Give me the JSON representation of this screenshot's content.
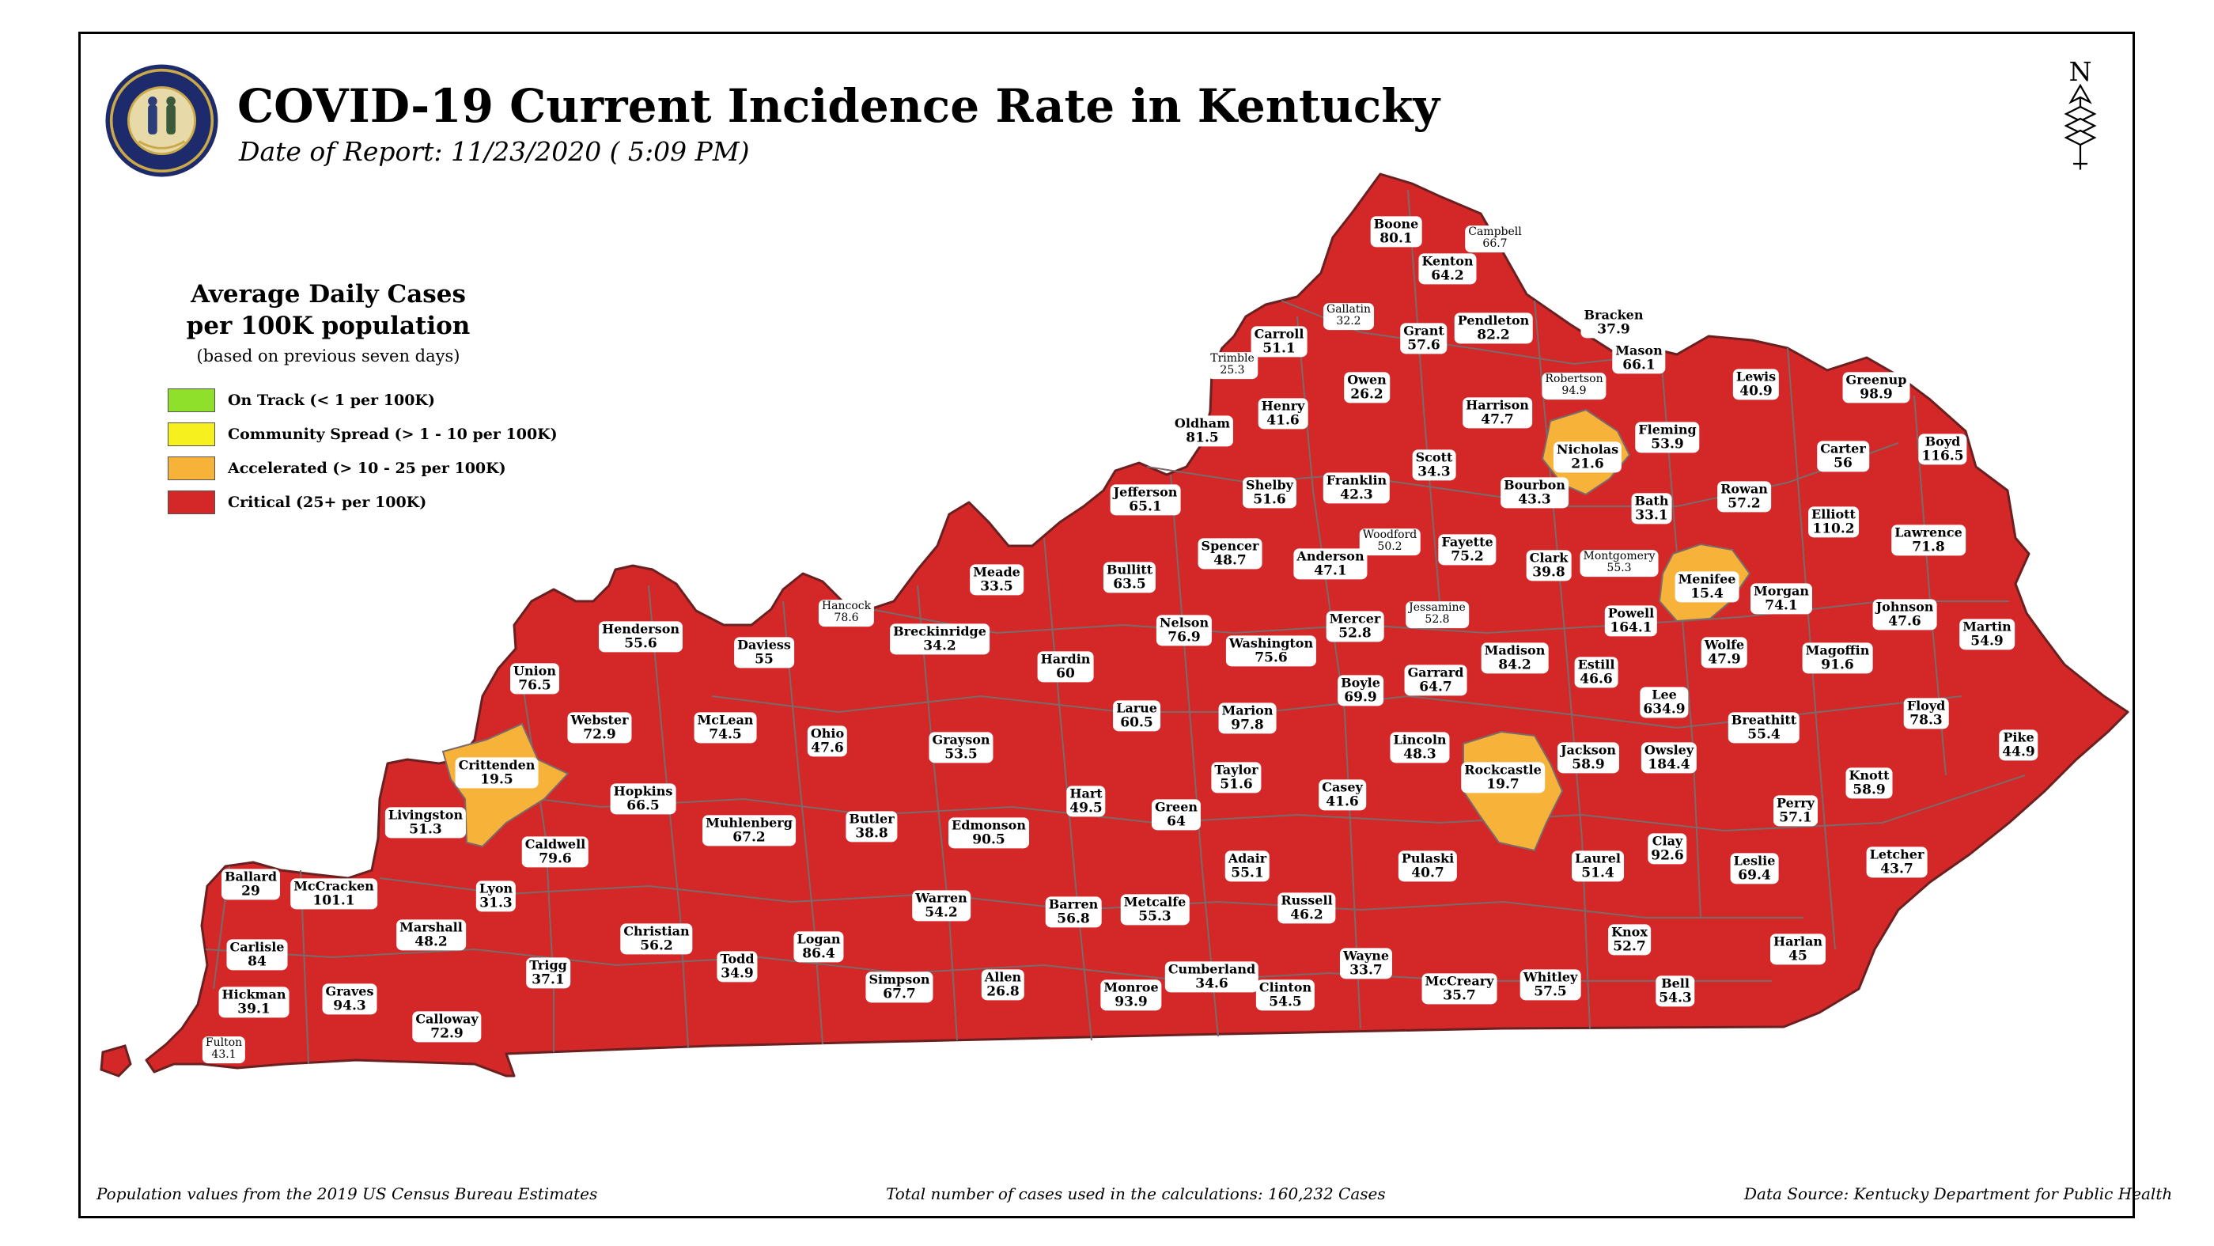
{
  "header": {
    "title": "COVID-19 Current Incidence Rate in Kentucky",
    "date": "Date of Report: 11/23/2020 ( 5:09 PM)",
    "north_letter": "N",
    "north_icon": "north-arrow-icon",
    "seal_icon": "commonwealth-of-kentucky-seal"
  },
  "legend": {
    "title_line1": "Average Daily Cases",
    "title_line2": "per 100K population",
    "subtitle": "(based on previous seven days)",
    "items": [
      {
        "label": "On Track (< 1 per 100K)",
        "color": "#8fe02a"
      },
      {
        "label": "Community Spread (> 1 - 10 per 100K)",
        "color": "#f6f01e"
      },
      {
        "label": "Accelerated (> 10 - 25 per 100K)",
        "color": "#f7b23a"
      },
      {
        "label": "Critical (25+ per 100K)",
        "color": "#d42727"
      }
    ]
  },
  "colors": {
    "critical": "#d42727",
    "accelerated": "#f7b23a",
    "border": "#7a6a6a"
  },
  "counties": [
    {
      "name": "Boone",
      "value": "80.1"
    },
    {
      "name": "Campbell",
      "value": "66.7"
    },
    {
      "name": "Kenton",
      "value": "64.2"
    },
    {
      "name": "Gallatin",
      "value": "32.2"
    },
    {
      "name": "Carroll",
      "value": "51.1"
    },
    {
      "name": "Grant",
      "value": "57.6"
    },
    {
      "name": "Pendleton",
      "value": "82.2"
    },
    {
      "name": "Bracken",
      "value": "37.9"
    },
    {
      "name": "Mason",
      "value": "66.1"
    },
    {
      "name": "Trimble",
      "value": "25.3"
    },
    {
      "name": "Robertson",
      "value": "94.9"
    },
    {
      "name": "Lewis",
      "value": "40.9"
    },
    {
      "name": "Greenup",
      "value": "98.9"
    },
    {
      "name": "Owen",
      "value": "26.2"
    },
    {
      "name": "Henry",
      "value": "41.6"
    },
    {
      "name": "Harrison",
      "value": "47.7"
    },
    {
      "name": "Oldham",
      "value": "81.5"
    },
    {
      "name": "Nicholas",
      "value": "21.6"
    },
    {
      "name": "Fleming",
      "value": "53.9"
    },
    {
      "name": "Carter",
      "value": "56"
    },
    {
      "name": "Boyd",
      "value": "116.5"
    },
    {
      "name": "Scott",
      "value": "34.3"
    },
    {
      "name": "Jefferson",
      "value": "65.1"
    },
    {
      "name": "Shelby",
      "value": "51.6"
    },
    {
      "name": "Franklin",
      "value": "42.3"
    },
    {
      "name": "Bourbon",
      "value": "43.3"
    },
    {
      "name": "Bath",
      "value": "33.1"
    },
    {
      "name": "Rowan",
      "value": "57.2"
    },
    {
      "name": "Elliott",
      "value": "110.2"
    },
    {
      "name": "Lawrence",
      "value": "71.8"
    },
    {
      "name": "Woodford",
      "value": "50.2"
    },
    {
      "name": "Fayette",
      "value": "75.2"
    },
    {
      "name": "Spencer",
      "value": "48.7"
    },
    {
      "name": "Anderson",
      "value": "47.1"
    },
    {
      "name": "Clark",
      "value": "39.8"
    },
    {
      "name": "Montgomery",
      "value": "55.3"
    },
    {
      "name": "Menifee",
      "value": "15.4"
    },
    {
      "name": "Meade",
      "value": "33.5"
    },
    {
      "name": "Bullitt",
      "value": "63.5"
    },
    {
      "name": "Morgan",
      "value": "74.1"
    },
    {
      "name": "Johnson",
      "value": "47.6"
    },
    {
      "name": "Hancock",
      "value": "78.6"
    },
    {
      "name": "Henderson",
      "value": "55.6"
    },
    {
      "name": "Breckinridge",
      "value": "34.2"
    },
    {
      "name": "Nelson",
      "value": "76.9"
    },
    {
      "name": "Mercer",
      "value": "52.8"
    },
    {
      "name": "Jessamine",
      "value": "52.8"
    },
    {
      "name": "Washington",
      "value": "75.6"
    },
    {
      "name": "Powell",
      "value": "164.1"
    },
    {
      "name": "Martin",
      "value": "54.9"
    },
    {
      "name": "Daviess",
      "value": "55"
    },
    {
      "name": "Hardin",
      "value": "60"
    },
    {
      "name": "Madison",
      "value": "84.2"
    },
    {
      "name": "Estill",
      "value": "46.6"
    },
    {
      "name": "Wolfe",
      "value": "47.9"
    },
    {
      "name": "Magoffin",
      "value": "91.6"
    },
    {
      "name": "Union",
      "value": "76.5"
    },
    {
      "name": "Boyle",
      "value": "69.9"
    },
    {
      "name": "Garrard",
      "value": "64.7"
    },
    {
      "name": "Lee",
      "value": "634.9"
    },
    {
      "name": "Floyd",
      "value": "78.3"
    },
    {
      "name": "Webster",
      "value": "72.9"
    },
    {
      "name": "McLean",
      "value": "74.5"
    },
    {
      "name": "Ohio",
      "value": "47.6"
    },
    {
      "name": "Larue",
      "value": "60.5"
    },
    {
      "name": "Marion",
      "value": "97.8"
    },
    {
      "name": "Breathitt",
      "value": "55.4"
    },
    {
      "name": "Lincoln",
      "value": "48.3"
    },
    {
      "name": "Pike",
      "value": "44.9"
    },
    {
      "name": "Grayson",
      "value": "53.5"
    },
    {
      "name": "Crittenden",
      "value": "19.5"
    },
    {
      "name": "Jackson",
      "value": "58.9"
    },
    {
      "name": "Owsley",
      "value": "184.4"
    },
    {
      "name": "Taylor",
      "value": "51.6"
    },
    {
      "name": "Rockcastle",
      "value": "19.7"
    },
    {
      "name": "Knott",
      "value": "58.9"
    },
    {
      "name": "Hopkins",
      "value": "66.5"
    },
    {
      "name": "Casey",
      "value": "41.6"
    },
    {
      "name": "Hart",
      "value": "49.5"
    },
    {
      "name": "Livingston",
      "value": "51.3"
    },
    {
      "name": "Perry",
      "value": "57.1"
    },
    {
      "name": "Butler",
      "value": "38.8"
    },
    {
      "name": "Green",
      "value": "64"
    },
    {
      "name": "Muhlenberg",
      "value": "67.2"
    },
    {
      "name": "Edmonson",
      "value": "90.5"
    },
    {
      "name": "Caldwell",
      "value": "79.6"
    },
    {
      "name": "Clay",
      "value": "92.6"
    },
    {
      "name": "Ballard",
      "value": "29"
    },
    {
      "name": "Adair",
      "value": "55.1"
    },
    {
      "name": "Pulaski",
      "value": "40.7"
    },
    {
      "name": "Laurel",
      "value": "51.4"
    },
    {
      "name": "Leslie",
      "value": "69.4"
    },
    {
      "name": "Letcher",
      "value": "43.7"
    },
    {
      "name": "McCracken",
      "value": "101.1"
    },
    {
      "name": "Lyon",
      "value": "31.3"
    },
    {
      "name": "Warren",
      "value": "54.2"
    },
    {
      "name": "Barren",
      "value": "56.8"
    },
    {
      "name": "Metcalfe",
      "value": "55.3"
    },
    {
      "name": "Russell",
      "value": "46.2"
    },
    {
      "name": "Marshall",
      "value": "48.2"
    },
    {
      "name": "Christian",
      "value": "56.2"
    },
    {
      "name": "Carlisle",
      "value": "84"
    },
    {
      "name": "Logan",
      "value": "86.4"
    },
    {
      "name": "Knox",
      "value": "52.7"
    },
    {
      "name": "Harlan",
      "value": "45"
    },
    {
      "name": "Cumberland",
      "value": "34.6"
    },
    {
      "name": "Wayne",
      "value": "33.7"
    },
    {
      "name": "Trigg",
      "value": "37.1"
    },
    {
      "name": "Todd",
      "value": "34.9"
    },
    {
      "name": "Graves",
      "value": "94.3"
    },
    {
      "name": "Simpson",
      "value": "67.7"
    },
    {
      "name": "Allen",
      "value": "26.8"
    },
    {
      "name": "Monroe",
      "value": "93.9"
    },
    {
      "name": "Clinton",
      "value": "54.5"
    },
    {
      "name": "McCreary",
      "value": "35.7"
    },
    {
      "name": "Whitley",
      "value": "57.5"
    },
    {
      "name": "Bell",
      "value": "54.3"
    },
    {
      "name": "Hickman",
      "value": "39.1"
    },
    {
      "name": "Calloway",
      "value": "72.9"
    },
    {
      "name": "Fulton",
      "value": "43.1"
    }
  ],
  "footer": {
    "left": "Population values from the 2019 US Census Bureau Estimates",
    "center": "Total number of cases used in the calculations: 160,232 Cases",
    "right": "Data Source: Kentucky Department for Public Health"
  }
}
